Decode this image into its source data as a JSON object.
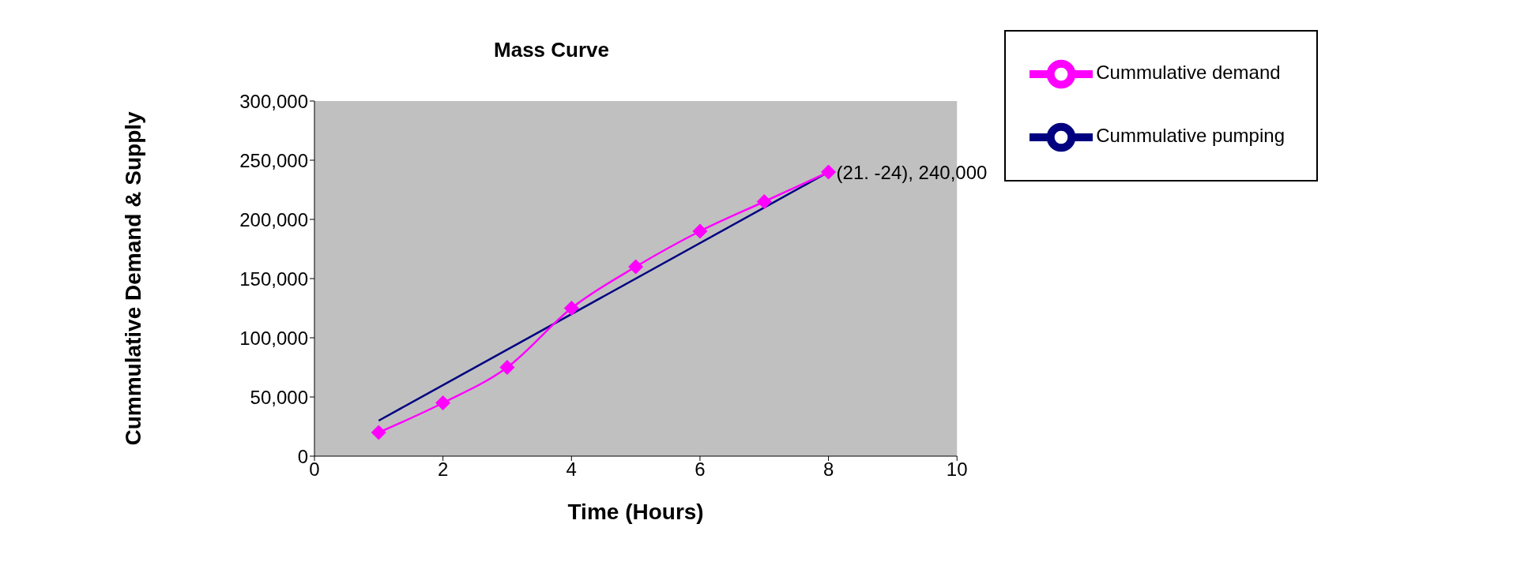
{
  "chart_data": {
    "type": "line",
    "title": "Mass Curve",
    "xlabel": "Time (Hours)",
    "ylabel": "Cummulative Demand & Supply",
    "xlim": [
      0,
      10
    ],
    "xticks": [
      0,
      2,
      4,
      6,
      8,
      10
    ],
    "ylim": [
      0,
      300000
    ],
    "yticks": [
      {
        "value": 0,
        "label": "0"
      },
      {
        "value": 50000,
        "label": "50,000"
      },
      {
        "value": 100000,
        "label": "100,000"
      },
      {
        "value": 150000,
        "label": "150,000"
      },
      {
        "value": 200000,
        "label": "200,000"
      },
      {
        "value": 250000,
        "label": "250,000"
      },
      {
        "value": 300000,
        "label": "300,000"
      }
    ],
    "grid": false,
    "legend": "top right",
    "series": [
      {
        "name": "Cummulative pumping",
        "color": "#000080",
        "x": [
          1,
          8
        ],
        "values": [
          30000,
          240000
        ],
        "marker": "none"
      },
      {
        "name": "Cummulative demand",
        "color": "#ff00ff",
        "x": [
          1,
          2,
          3,
          4,
          5,
          6,
          7,
          8
        ],
        "values": [
          20000,
          45000,
          75000,
          125000,
          160000,
          190000,
          215000,
          240000
        ],
        "marker": "diamond"
      }
    ],
    "annotations": [
      {
        "text": "(21. -24), 240,000",
        "x": 8,
        "y": 240000
      }
    ]
  }
}
